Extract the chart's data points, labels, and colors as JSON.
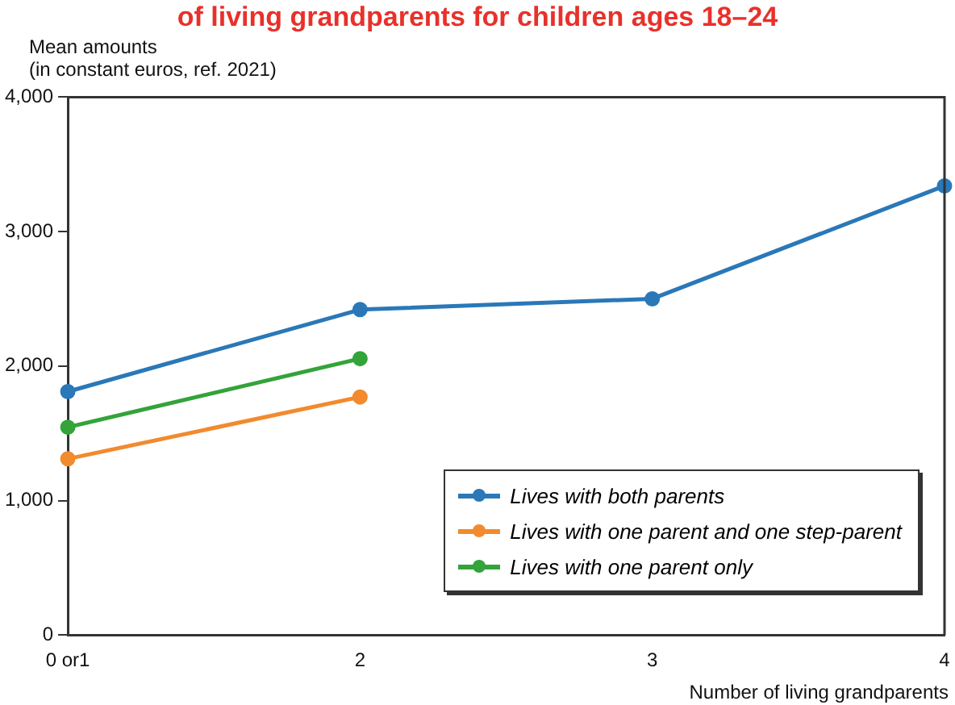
{
  "chart_data": {
    "type": "line",
    "title": "of living grandparents for children ages 18–24",
    "ylabel": "Mean amounts\n(in constant euros, ref. 2021)",
    "xlabel": "Number of living grandparents",
    "categories": [
      "0 or1",
      "2",
      "3",
      "4"
    ],
    "series": [
      {
        "name": "Lives with both parents",
        "color": "#2a78b8",
        "values": [
          1810,
          2420,
          2500,
          3340
        ]
      },
      {
        "name": "Lives with one parent and one step-parent",
        "color": "#f28a2e",
        "values": [
          1310,
          1770,
          null,
          null
        ]
      },
      {
        "name": "Lives with one parent only",
        "color": "#33a33a",
        "values": [
          1545,
          2055,
          null,
          null
        ]
      }
    ],
    "ylim": [
      0,
      4000
    ],
    "yticks": [
      {
        "value": 0,
        "label": "0"
      },
      {
        "value": 1000,
        "label": "1,000"
      },
      {
        "value": 2000,
        "label": "2,000"
      },
      {
        "value": 3000,
        "label": "3,000"
      },
      {
        "value": 4000,
        "label": "4,000"
      }
    ],
    "grid": false,
    "legend": "bottom right",
    "marker": "circle",
    "line_style": "solid"
  }
}
